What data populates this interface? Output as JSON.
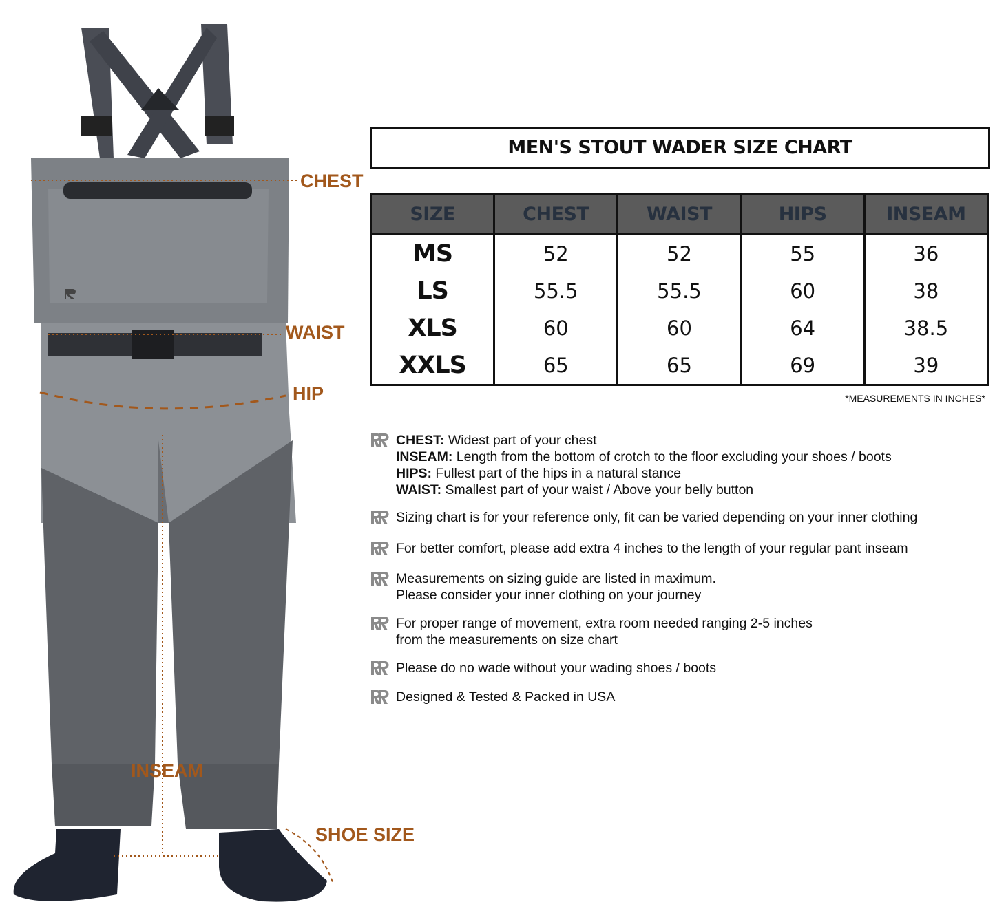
{
  "labels": {
    "chest": "CHEST",
    "waist": "WAIST",
    "hip": "HIP",
    "inseam": "INSEAM",
    "shoe_size": "SHOE SIZE"
  },
  "chart_title": "MEN'S STOUT WADER SIZE CHART",
  "table": {
    "headers": [
      "SIZE",
      "CHEST",
      "WAIST",
      "HIPS",
      "INSEAM"
    ],
    "rows": [
      [
        "MS",
        "52",
        "52",
        "55",
        "36"
      ],
      [
        "LS",
        "55.5",
        "55.5",
        "60",
        "38"
      ],
      [
        "XLS",
        "60",
        "60",
        "64",
        "38.5"
      ],
      [
        "XXLS",
        "65",
        "65",
        "69",
        "39"
      ]
    ]
  },
  "note": "*MEASUREMENTS IN INCHES*",
  "definitions": [
    {
      "term": "CHEST:",
      "text": " Widest part of your chest"
    },
    {
      "term": "INSEAM:",
      "text": " Length from the bottom of crotch to the floor excluding your shoes / boots"
    },
    {
      "term": "HIPS:",
      "text": " Fullest part of the hips in a natural stance"
    },
    {
      "term": "WAIST:",
      "text": " Smallest part of your waist / Above your belly button"
    }
  ],
  "tips": [
    [
      "Sizing chart is for your reference only, fit can be varied depending on your inner clothing"
    ],
    [
      "For better comfort, please add extra 4 inches to the length of your regular pant inseam"
    ],
    [
      "Measurements on sizing guide are listed in maximum.",
      "Please consider your inner clothing on your journey"
    ],
    [
      "For proper range of movement, extra room needed ranging 2-5 inches",
      "from the measurements on size chart"
    ],
    [
      "Please do no wade without your wading shoes / boots"
    ],
    [
      "Designed & Tested & Packed in USA"
    ]
  ],
  "colors": {
    "label": "#a2581c",
    "header_bg": "#5b5b5b",
    "header_text": "#27313f",
    "bullet_logo": "#8a8a8a"
  },
  "icons": {
    "bullet": "brand-logo-icon"
  }
}
